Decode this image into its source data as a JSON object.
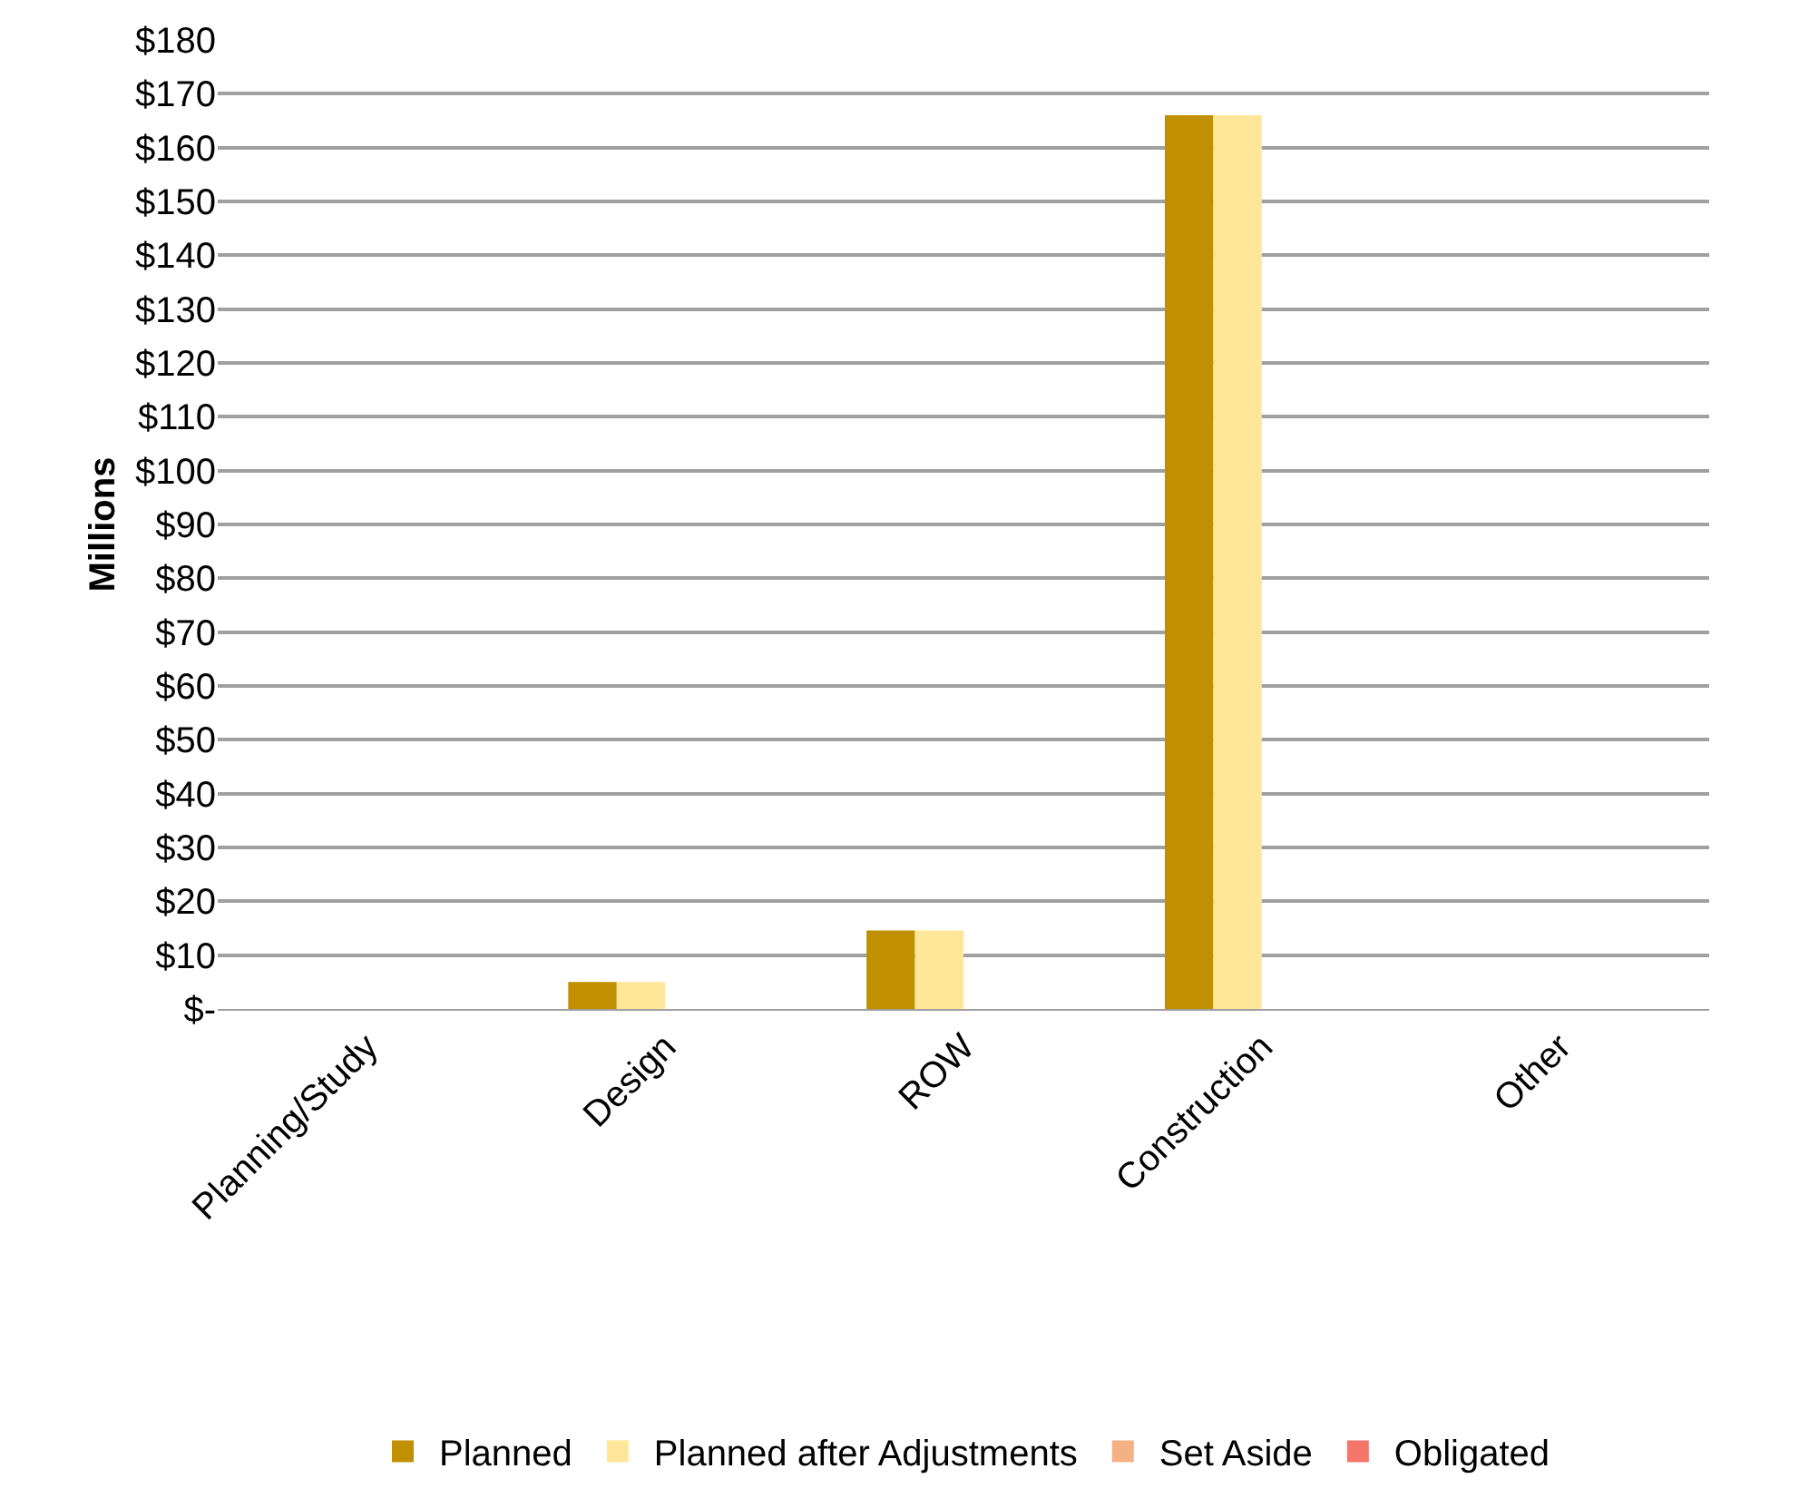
{
  "chart_data": {
    "type": "bar",
    "ylabel": "Millions",
    "categories": [
      "Planning/Study",
      "Design",
      "ROW",
      "Construction",
      "Other"
    ],
    "series": [
      {
        "name": "Planned",
        "color": "#c09000",
        "values": [
          0,
          5,
          14.6,
          166,
          0
        ]
      },
      {
        "name": "Planned after Adjustments",
        "color": "#ffe699",
        "values": [
          0,
          5,
          14.6,
          166,
          0
        ]
      },
      {
        "name": "Set Aside",
        "color": "#f4b183",
        "values": [
          0,
          0,
          0,
          0,
          0
        ]
      },
      {
        "name": "Obligated",
        "color": "#f4766a",
        "values": [
          0,
          0,
          0,
          0,
          0
        ]
      }
    ],
    "ylim": [
      0,
      180
    ],
    "yticks": [
      {
        "value": 0,
        "label": "$-"
      },
      {
        "value": 10,
        "label": "$10"
      },
      {
        "value": 20,
        "label": "$20"
      },
      {
        "value": 30,
        "label": "$30"
      },
      {
        "value": 40,
        "label": "$40"
      },
      {
        "value": 50,
        "label": "$50"
      },
      {
        "value": 60,
        "label": "$60"
      },
      {
        "value": 70,
        "label": "$70"
      },
      {
        "value": 80,
        "label": "$80"
      },
      {
        "value": 90,
        "label": "$90"
      },
      {
        "value": 100,
        "label": "$100"
      },
      {
        "value": 110,
        "label": "$110"
      },
      {
        "value": 120,
        "label": "$120"
      },
      {
        "value": 130,
        "label": "$130"
      },
      {
        "value": 140,
        "label": "$140"
      },
      {
        "value": 150,
        "label": "$150"
      },
      {
        "value": 160,
        "label": "$160"
      },
      {
        "value": 170,
        "label": "$170"
      },
      {
        "value": 180,
        "label": "$180"
      }
    ],
    "grid": "y",
    "legend": "bottom"
  }
}
